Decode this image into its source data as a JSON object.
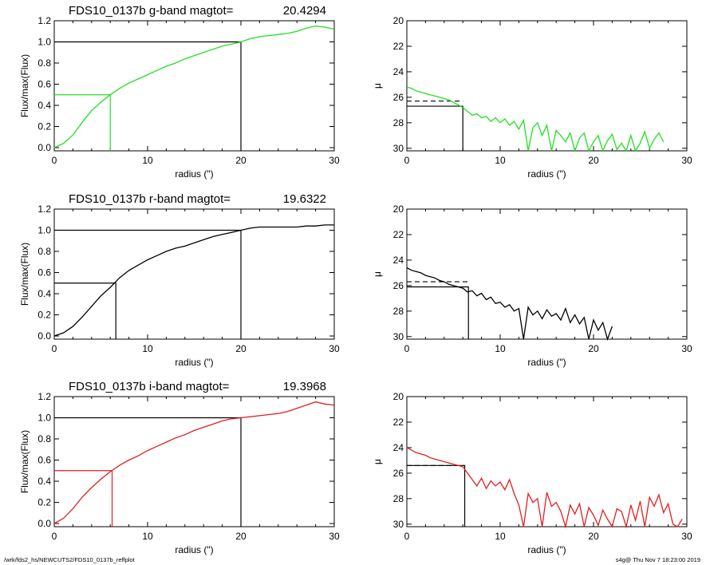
{
  "footer": {
    "path": "/wrk/fds2_hs/NEWCUTS2/FDS10_0137b_reffplot",
    "stamp": "s4g@  Thu Nov  7 18:23:00 2019"
  },
  "colors": {
    "g": "#22e022",
    "r": "#000000",
    "i": "#e02020",
    "axis": "#000000"
  },
  "chart_data": [
    {
      "id": "g-growth",
      "type": "line",
      "title": "FDS10_0137b g-band  magtot=",
      "title_value": "20.4294",
      "xlabel": "radius (\")",
      "ylabel": "Flux/max(Flux)",
      "xlim": [
        0,
        30
      ],
      "ylim": [
        -0.03,
        1.2
      ],
      "xticks": [
        0,
        10,
        20,
        30
      ],
      "yticks": [
        0.0,
        0.2,
        0.4,
        0.6,
        0.8,
        1.0,
        1.2
      ],
      "ytick_labels": [
        "0.0",
        "0.2",
        "0.4",
        "0.6",
        "0.8",
        "1.0",
        "1.2"
      ],
      "color_key": "g",
      "half_light": {
        "x": 6.0,
        "y": 0.5
      },
      "total": {
        "x": 20.0,
        "y": 1.0
      },
      "series": [
        {
          "x": [
            0,
            1,
            2,
            3,
            4,
            5,
            6,
            7,
            8,
            9,
            10,
            11,
            12,
            13,
            14,
            15,
            16,
            17,
            18,
            19,
            20,
            21,
            22,
            23,
            24,
            25,
            26,
            27,
            28,
            29,
            30
          ],
          "y": [
            0.0,
            0.04,
            0.12,
            0.24,
            0.35,
            0.43,
            0.5,
            0.56,
            0.61,
            0.65,
            0.69,
            0.73,
            0.77,
            0.8,
            0.84,
            0.87,
            0.9,
            0.93,
            0.96,
            0.98,
            1.0,
            1.03,
            1.05,
            1.06,
            1.07,
            1.08,
            1.1,
            1.13,
            1.15,
            1.14,
            1.12
          ]
        }
      ]
    },
    {
      "id": "g-profile",
      "type": "line",
      "xlabel": "radius (\")",
      "ylabel": "μ",
      "xlim": [
        0,
        30
      ],
      "ylim": [
        30.2,
        20
      ],
      "inverted_y": true,
      "xticks": [
        0,
        10,
        20,
        30
      ],
      "yticks": [
        20,
        22,
        24,
        26,
        28,
        30
      ],
      "color_key": "g",
      "dashed_level": 26.3,
      "solid_level": 26.7,
      "marker_x": 6.0,
      "series": [
        {
          "x": [
            0,
            0.5,
            1,
            1.5,
            2,
            2.5,
            3,
            3.5,
            4,
            4.5,
            5,
            5.5,
            6,
            6.5,
            7,
            7.5,
            8,
            8.5,
            9,
            9.5,
            10,
            10.5,
            11,
            11.5,
            12,
            12.5,
            13,
            13.5,
            14,
            14.5,
            15,
            15.5,
            16,
            16.5,
            17,
            17.5,
            18,
            18.5,
            19,
            19.5,
            20,
            20.5,
            21,
            21.5,
            22,
            22.5,
            23,
            23.5,
            24,
            24.5,
            25,
            25.5,
            26,
            26.5,
            27,
            27.5
          ],
          "y": [
            25.2,
            25.3,
            25.5,
            25.6,
            25.7,
            25.8,
            25.9,
            26.0,
            26.1,
            26.2,
            26.4,
            26.6,
            26.8,
            27.1,
            27.4,
            27.3,
            27.6,
            27.5,
            27.9,
            27.6,
            28.0,
            27.7,
            28.2,
            27.9,
            28.5,
            27.8,
            30.3,
            28.4,
            28.0,
            29.0,
            28.2,
            30.2,
            28.6,
            29.0,
            29.5,
            28.8,
            30.3,
            29.2,
            28.8,
            30.3,
            29.5,
            29.0,
            30.2,
            29.4,
            28.9,
            30.1,
            29.6,
            30.3,
            29.0,
            30.2,
            29.6,
            28.7,
            30.0,
            29.3,
            28.8,
            29.5
          ]
        }
      ]
    },
    {
      "id": "r-growth",
      "type": "line",
      "title": "FDS10_0137b r-band  magtot=",
      "title_value": "19.6322",
      "xlabel": "radius (\")",
      "ylabel": "Flux/max(Flux)",
      "xlim": [
        0,
        30
      ],
      "ylim": [
        -0.03,
        1.2
      ],
      "xticks": [
        0,
        10,
        20,
        30
      ],
      "yticks": [
        0.0,
        0.2,
        0.4,
        0.6,
        0.8,
        1.0,
        1.2
      ],
      "ytick_labels": [
        "0.0",
        "0.2",
        "0.4",
        "0.6",
        "0.8",
        "1.0",
        "1.2"
      ],
      "color_key": "r",
      "half_light": {
        "x": 6.6,
        "y": 0.5
      },
      "total": {
        "x": 20.0,
        "y": 1.0
      },
      "series": [
        {
          "x": [
            0,
            1,
            2,
            3,
            4,
            5,
            6,
            7,
            8,
            9,
            10,
            11,
            12,
            13,
            14,
            15,
            16,
            17,
            18,
            19,
            20,
            21,
            22,
            23,
            24,
            25,
            26,
            27,
            28,
            29,
            30
          ],
          "y": [
            0.0,
            0.03,
            0.09,
            0.18,
            0.28,
            0.38,
            0.46,
            0.55,
            0.62,
            0.67,
            0.72,
            0.76,
            0.8,
            0.83,
            0.85,
            0.88,
            0.91,
            0.94,
            0.96,
            0.98,
            1.0,
            1.02,
            1.03,
            1.03,
            1.03,
            1.03,
            1.03,
            1.04,
            1.04,
            1.05,
            1.05
          ]
        }
      ]
    },
    {
      "id": "r-profile",
      "type": "line",
      "xlabel": "radius (\")",
      "ylabel": "μ",
      "xlim": [
        0,
        30
      ],
      "ylim": [
        30.2,
        20
      ],
      "inverted_y": true,
      "xticks": [
        0,
        10,
        20,
        30
      ],
      "yticks": [
        20,
        22,
        24,
        26,
        28,
        30
      ],
      "color_key": "r",
      "dashed_level": 25.7,
      "solid_level": 26.1,
      "marker_x": 6.6,
      "series": [
        {
          "x": [
            0,
            0.5,
            1,
            1.5,
            2,
            2.5,
            3,
            3.5,
            4,
            4.5,
            5,
            5.5,
            6,
            6.5,
            7,
            7.5,
            8,
            8.5,
            9,
            9.5,
            10,
            10.5,
            11,
            11.5,
            12,
            12.5,
            13,
            13.5,
            14,
            14.5,
            15,
            15.5,
            16,
            16.5,
            17,
            17.5,
            18,
            18.5,
            19,
            19.5,
            20,
            20.5,
            21,
            21.5,
            22
          ],
          "y": [
            24.6,
            24.8,
            24.9,
            25.0,
            25.2,
            25.3,
            25.4,
            25.6,
            25.7,
            25.9,
            26.0,
            26.1,
            26.2,
            26.5,
            26.4,
            26.8,
            26.6,
            27.1,
            26.9,
            27.4,
            27.3,
            27.7,
            27.5,
            28.0,
            27.8,
            30.3,
            27.7,
            28.3,
            28.0,
            28.6,
            27.9,
            28.4,
            28.2,
            28.7,
            27.8,
            28.9,
            28.3,
            29.0,
            28.5,
            30.3,
            28.7,
            29.5,
            28.9,
            30.2,
            29.2
          ]
        }
      ]
    },
    {
      "id": "i-growth",
      "type": "line",
      "title": "FDS10_0137b i-band  magtot=",
      "title_value": "19.3968",
      "xlabel": "radius (\")",
      "ylabel": "Flux/max(Flux)",
      "xlim": [
        0,
        30
      ],
      "ylim": [
        -0.03,
        1.2
      ],
      "xticks": [
        0,
        10,
        20,
        30
      ],
      "yticks": [
        0.0,
        0.2,
        0.4,
        0.6,
        0.8,
        1.0,
        1.2
      ],
      "ytick_labels": [
        "0.0",
        "0.2",
        "0.4",
        "0.6",
        "0.8",
        "1.0",
        "1.2"
      ],
      "color_key": "i",
      "half_light": {
        "x": 6.2,
        "y": 0.5
      },
      "total": {
        "x": 20.0,
        "y": 1.0
      },
      "series": [
        {
          "x": [
            0,
            1,
            2,
            3,
            4,
            5,
            6,
            7,
            8,
            9,
            10,
            11,
            12,
            13,
            14,
            15,
            16,
            17,
            18,
            19,
            20,
            21,
            22,
            23,
            24,
            25,
            26,
            27,
            28,
            29,
            30
          ],
          "y": [
            0.0,
            0.05,
            0.14,
            0.25,
            0.34,
            0.42,
            0.49,
            0.55,
            0.6,
            0.64,
            0.69,
            0.73,
            0.77,
            0.81,
            0.84,
            0.88,
            0.91,
            0.94,
            0.97,
            0.99,
            1.0,
            1.01,
            1.02,
            1.03,
            1.04,
            1.06,
            1.09,
            1.12,
            1.15,
            1.13,
            1.12
          ]
        }
      ]
    },
    {
      "id": "i-profile",
      "type": "line",
      "xlabel": "radius (\")",
      "ylabel": "μ",
      "xlim": [
        0,
        30
      ],
      "ylim": [
        30.2,
        20
      ],
      "inverted_y": true,
      "xticks": [
        0,
        10,
        20,
        30
      ],
      "yticks": [
        20,
        22,
        24,
        26,
        28,
        30
      ],
      "color_key": "i",
      "dashed_level": 25.4,
      "solid_level": 25.4,
      "marker_x": 6.2,
      "series": [
        {
          "x": [
            0,
            0.5,
            1,
            1.5,
            2,
            2.5,
            3,
            3.5,
            4,
            4.5,
            5,
            5.5,
            6,
            6.5,
            7,
            7.5,
            8,
            8.5,
            9,
            9.5,
            10,
            10.5,
            11,
            11.5,
            12,
            12.5,
            13,
            13.5,
            14,
            14.5,
            15,
            15.5,
            16,
            16.5,
            17,
            17.5,
            18,
            18.5,
            19,
            19.5,
            20,
            20.5,
            21,
            21.5,
            22,
            22.5,
            23,
            23.5,
            24,
            24.5,
            25,
            25.5,
            26,
            26.5,
            27,
            27.5,
            28,
            28.5,
            29,
            29.5
          ],
          "y": [
            24.0,
            24.2,
            24.4,
            24.5,
            24.6,
            24.8,
            24.9,
            25.0,
            25.1,
            25.2,
            25.3,
            25.4,
            25.5,
            26.0,
            26.5,
            27.0,
            26.4,
            27.2,
            26.6,
            27.0,
            26.7,
            27.3,
            26.5,
            27.6,
            28.5,
            30.3,
            27.6,
            28.3,
            28.0,
            30.2,
            27.5,
            28.6,
            28.3,
            29.0,
            30.2,
            28.5,
            29.2,
            28.4,
            30.3,
            28.7,
            29.3,
            30.1,
            28.9,
            29.6,
            30.2,
            28.8,
            29.0,
            30.3,
            28.5,
            29.7,
            28.2,
            30.2,
            27.9,
            28.6,
            27.7,
            29.1,
            28.4,
            30.0,
            30.3,
            29.6
          ]
        }
      ]
    }
  ]
}
